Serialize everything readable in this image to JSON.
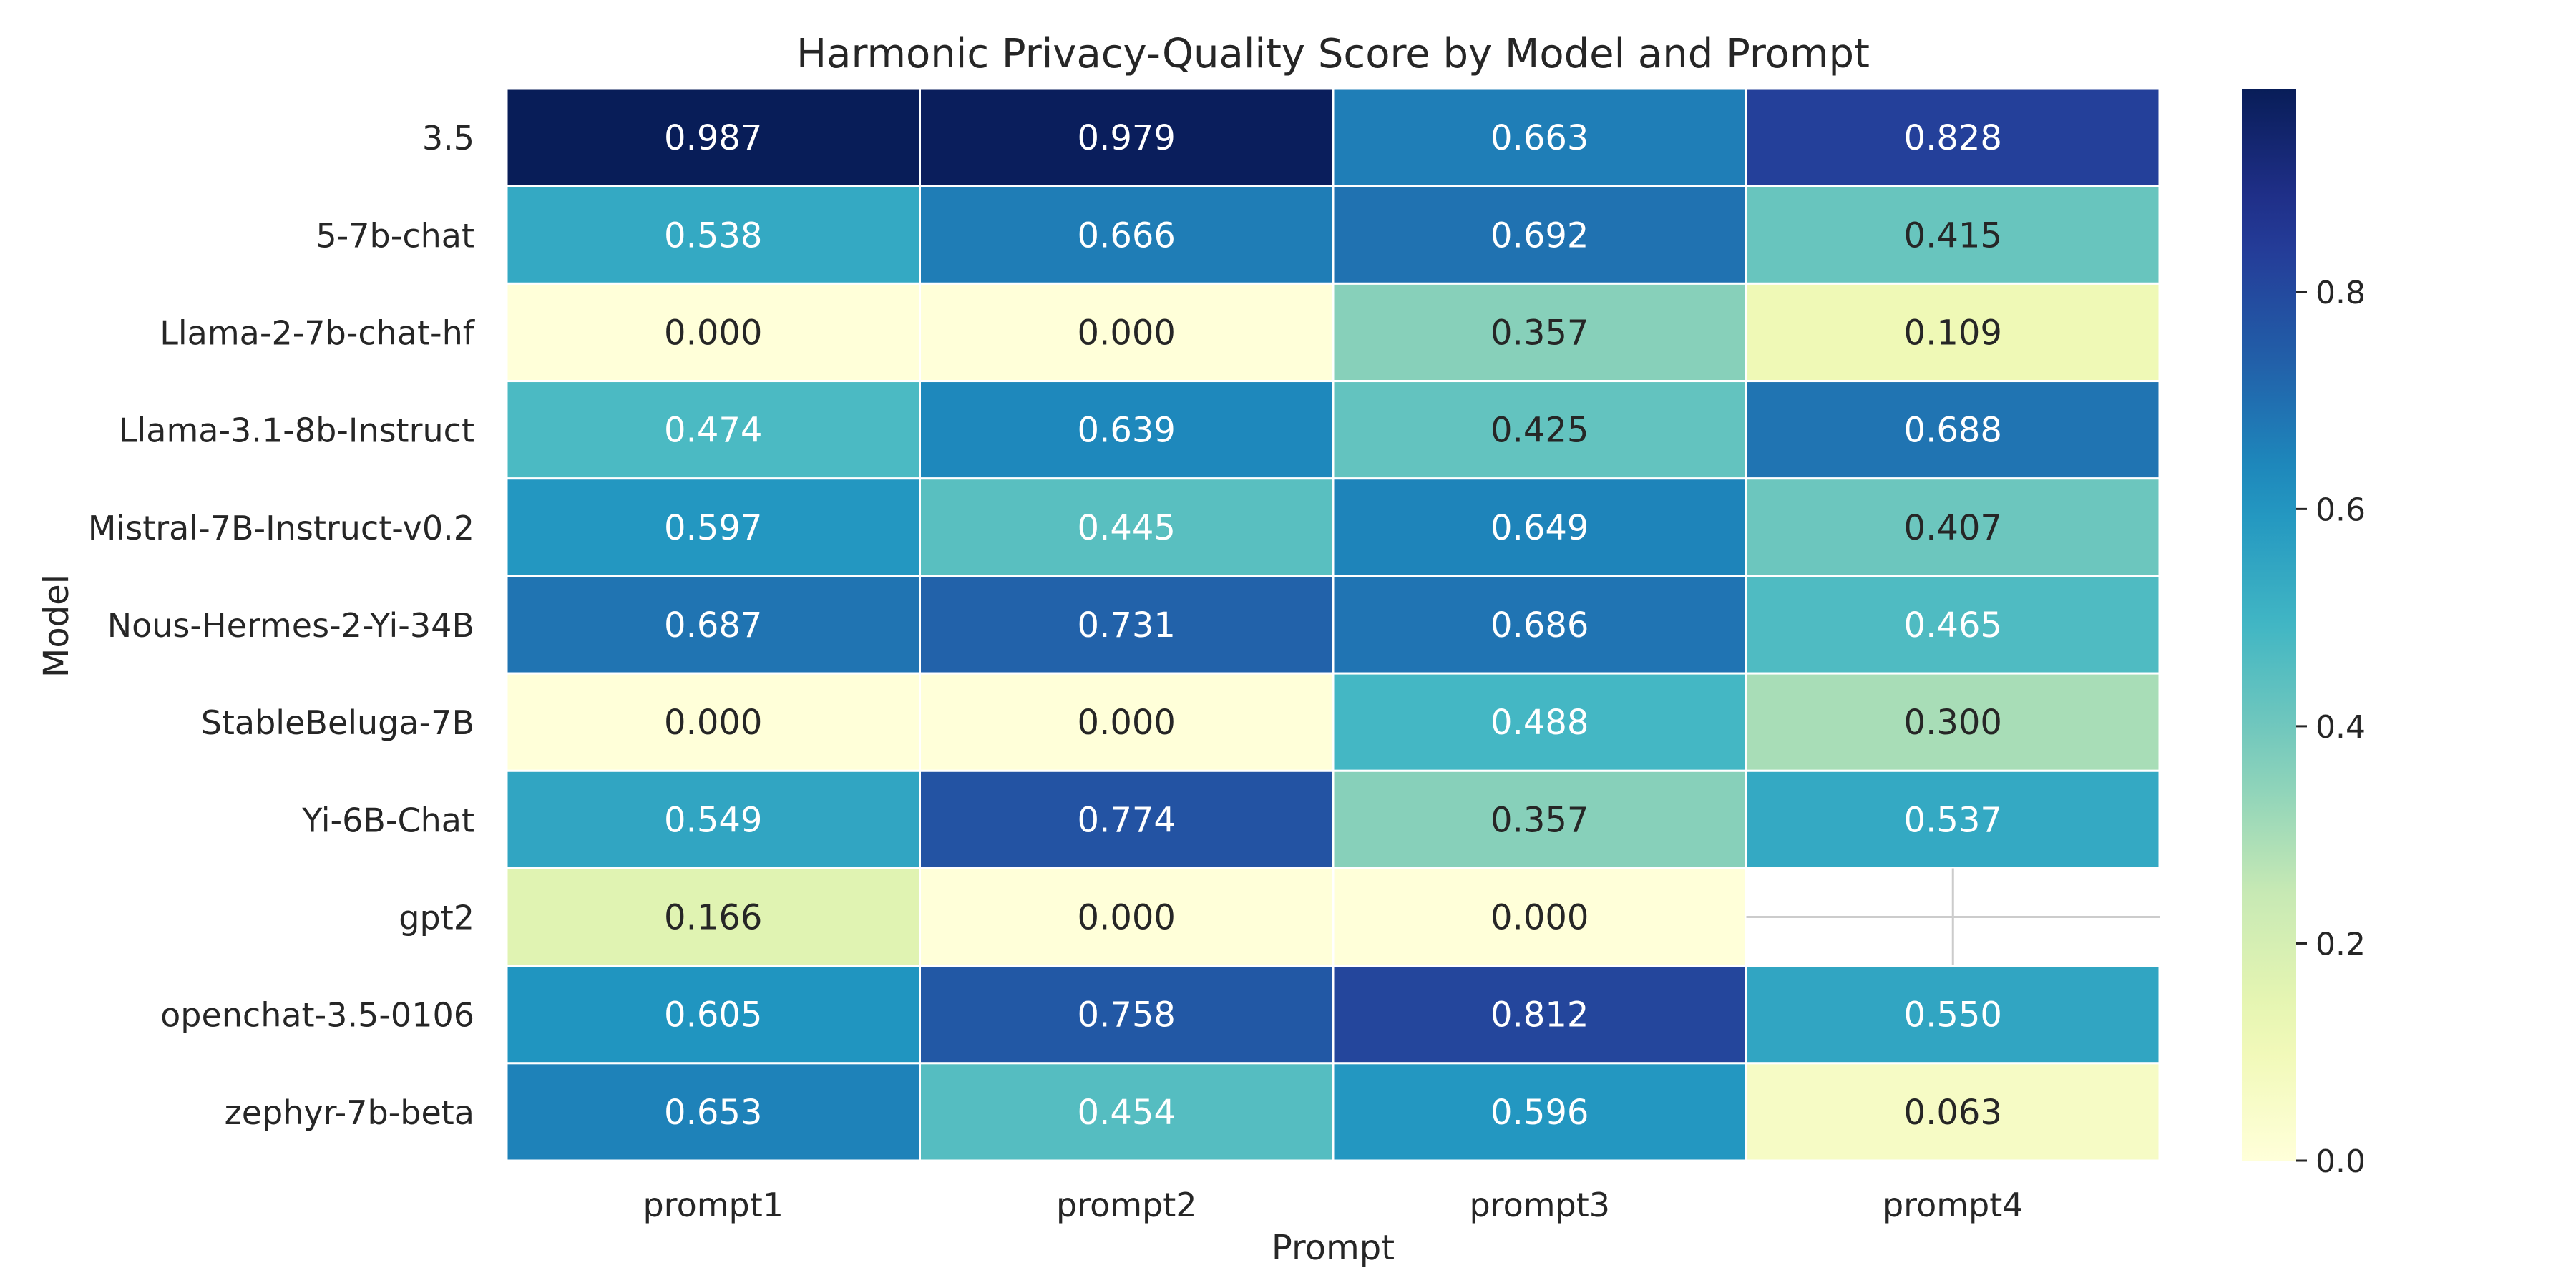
{
  "chart_data": {
    "type": "heatmap",
    "title": "Harmonic Privacy-Quality Score by Model and Prompt",
    "xlabel": "Prompt",
    "ylabel": "Model",
    "x_categories": [
      "prompt1",
      "prompt2",
      "prompt3",
      "prompt4"
    ],
    "y_categories": [
      "3.5",
      "5-7b-chat",
      "Llama-2-7b-chat-hf",
      "Llama-3.1-8b-Instruct",
      "Mistral-7B-Instruct-v0.2",
      "Nous-Hermes-2-Yi-34B",
      "StableBeluga-7B",
      "Yi-6B-Chat",
      "gpt2",
      "openchat-3.5-0106",
      "zephyr-7b-beta"
    ],
    "values": [
      [
        0.987,
        0.979,
        0.663,
        0.828
      ],
      [
        0.538,
        0.666,
        0.692,
        0.415
      ],
      [
        0.0,
        0.0,
        0.357,
        0.109
      ],
      [
        0.474,
        0.639,
        0.425,
        0.688
      ],
      [
        0.597,
        0.445,
        0.649,
        0.407
      ],
      [
        0.687,
        0.731,
        0.686,
        0.465
      ],
      [
        0.0,
        0.0,
        0.488,
        0.3
      ],
      [
        0.549,
        0.774,
        0.357,
        0.537
      ],
      [
        0.166,
        0.0,
        0.0,
        null
      ],
      [
        0.605,
        0.758,
        0.812,
        0.55
      ],
      [
        0.653,
        0.454,
        0.596,
        0.063
      ]
    ],
    "value_format": "0.000",
    "colormap": "YlGnBu",
    "colorbar": {
      "range": [
        0,
        0.987
      ],
      "ticks": [
        0.0,
        0.2,
        0.4,
        0.6,
        0.8
      ],
      "tick_labels": [
        "0.0",
        "0.2",
        "0.4",
        "0.6",
        "0.8"
      ],
      "placement": "right"
    },
    "colors": {
      "grid_line": "#ffffff",
      "missing_cell_lines": "#cccccc",
      "text_dark": "#262626",
      "text_light": "#ffffff"
    }
  }
}
